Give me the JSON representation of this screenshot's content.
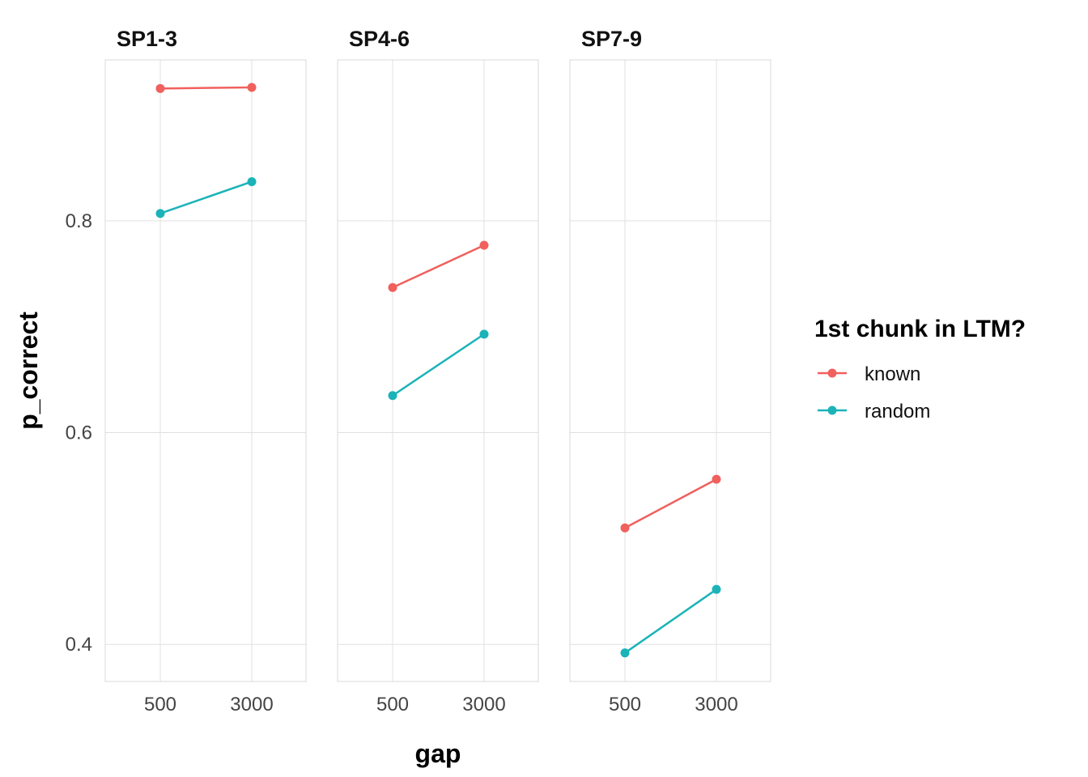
{
  "chart_data": {
    "type": "line",
    "facet_by": "",
    "xlabel": "gap",
    "ylabel": "p_correct",
    "x_categories": [
      "500",
      "3000"
    ],
    "ylim": [
      0.365,
      0.952
    ],
    "y_ticks": [
      0.4,
      0.6,
      0.8
    ],
    "y_tick_labels": [
      "0.4",
      "0.6",
      "0.8"
    ],
    "grid": true,
    "legend": {
      "title": "1st chunk in LTM?",
      "placement": "right",
      "entries": [
        {
          "name": "known",
          "color": "#F0605D"
        },
        {
          "name": "random",
          "color": "#1BB3B8"
        }
      ]
    },
    "panels": [
      {
        "title": "SP1-3",
        "series": [
          {
            "name": "known",
            "values": [
              0.925,
              0.926
            ]
          },
          {
            "name": "random",
            "values": [
              0.807,
              0.837
            ]
          }
        ]
      },
      {
        "title": "SP4-6",
        "series": [
          {
            "name": "known",
            "values": [
              0.737,
              0.777
            ]
          },
          {
            "name": "random",
            "values": [
              0.635,
              0.693
            ]
          }
        ]
      },
      {
        "title": "SP7-9",
        "series": [
          {
            "name": "known",
            "values": [
              0.51,
              0.556
            ]
          },
          {
            "name": "random",
            "values": [
              0.392,
              0.452
            ]
          }
        ]
      }
    ]
  }
}
